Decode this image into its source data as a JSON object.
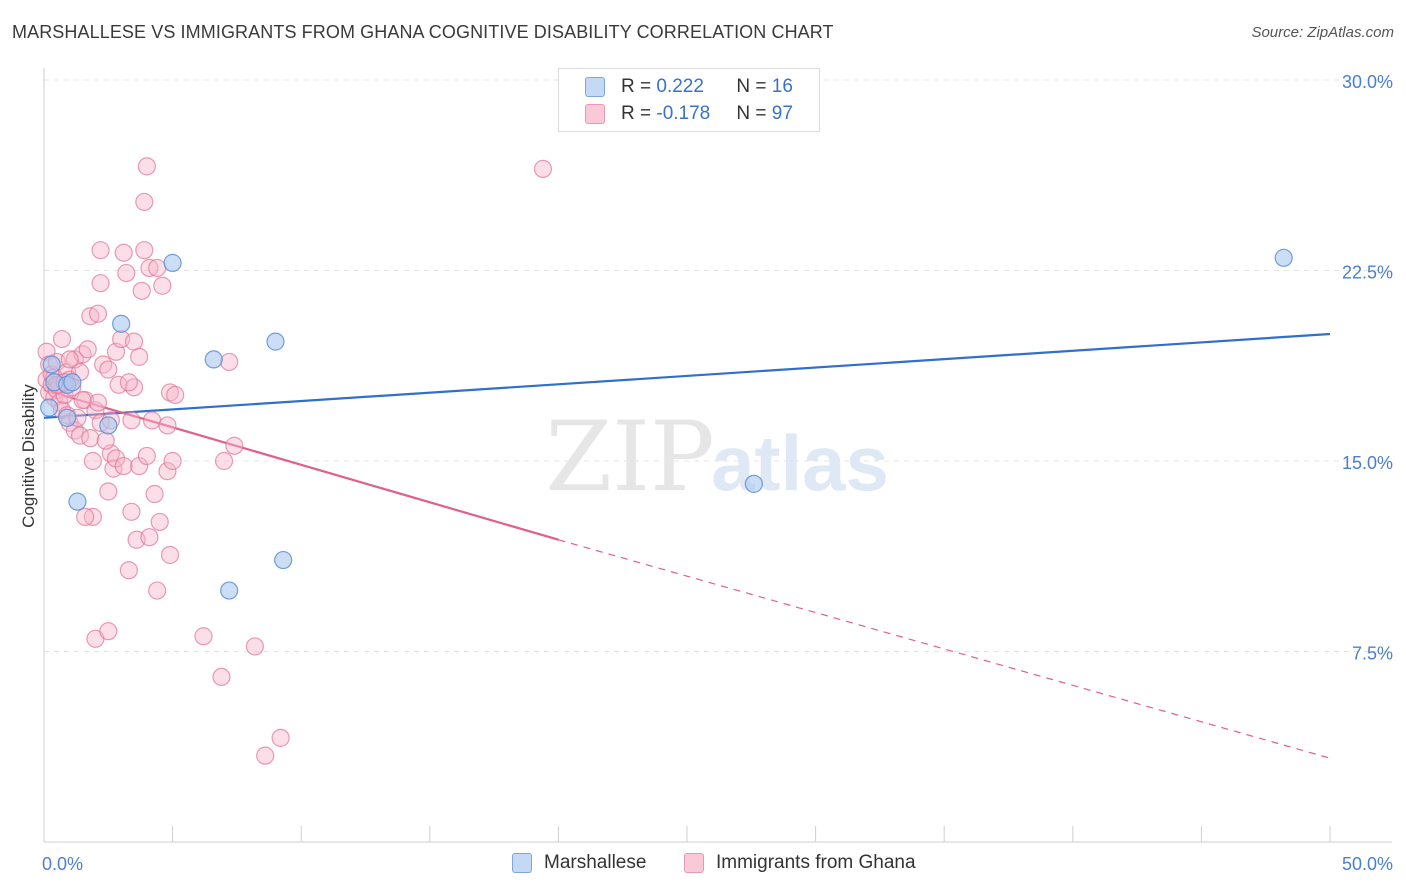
{
  "header": {
    "title": "MARSHALLESE VS IMMIGRANTS FROM GHANA COGNITIVE DISABILITY CORRELATION CHART",
    "source": "Source: ZipAtlas.com"
  },
  "legend": {
    "rows": [
      {
        "r_label": "R = ",
        "r_value": "0.222",
        "n_label": "N = ",
        "n_value": "16"
      },
      {
        "r_label": "R = ",
        "r_value": "-0.178",
        "n_label": "N = ",
        "n_value": "97"
      }
    ]
  },
  "bottom_legend": {
    "items": [
      "Marshallese",
      "Immigrants from Ghana"
    ]
  },
  "colors": {
    "blue_fill": "#aac8f0",
    "blue_stroke": "#5b8fd6",
    "blue_line": "#2f6fce",
    "pink_fill": "#f6b6c9",
    "pink_stroke": "#e07396",
    "pink_line": "#e05f8e",
    "grid": "#e4e4e4",
    "tick_text": "#4a7fd0"
  },
  "chart_data": {
    "type": "scatter",
    "title": "MARSHALLESE VS IMMIGRANTS FROM GHANA COGNITIVE DISABILITY CORRELATION CHART",
    "xlabel": "",
    "ylabel": "Cognitive Disability",
    "xlim": [
      0,
      50
    ],
    "ylim": [
      0,
      30
    ],
    "x_tick_labels": [
      "0.0%",
      "50.0%"
    ],
    "y_ticks": [
      7.5,
      15.0,
      22.5,
      30.0
    ],
    "y_tick_labels": [
      "7.5%",
      "15.0%",
      "22.5%",
      "30.0%"
    ],
    "grid": "horizontal dashed",
    "watermark": "ZIPatlas",
    "series": [
      {
        "name": "Marshallese",
        "color": "#aac8f0",
        "points": [
          [
            0.2,
            17.1
          ],
          [
            0.4,
            18.1
          ],
          [
            0.9,
            16.7
          ],
          [
            0.9,
            18.0
          ],
          [
            1.3,
            13.4
          ],
          [
            2.5,
            16.4
          ],
          [
            3.0,
            20.4
          ],
          [
            5.0,
            22.8
          ],
          [
            6.6,
            19.0
          ],
          [
            7.2,
            9.9
          ],
          [
            9.0,
            19.7
          ],
          [
            9.3,
            11.1
          ],
          [
            27.6,
            14.1
          ],
          [
            48.2,
            23.0
          ],
          [
            0.3,
            18.8
          ],
          [
            1.1,
            18.1
          ]
        ],
        "trend": {
          "x0": 0,
          "y0": 16.7,
          "x1": 50,
          "y1": 20.0,
          "style": "solid"
        }
      },
      {
        "name": "Immigrants from Ghana",
        "color": "#f6b6c9",
        "points": [
          [
            0.1,
            19.3
          ],
          [
            0.1,
            18.2
          ],
          [
            0.2,
            17.7
          ],
          [
            0.2,
            18.8
          ],
          [
            0.3,
            18.4
          ],
          [
            0.3,
            18.0
          ],
          [
            0.4,
            17.5
          ],
          [
            0.4,
            18.3
          ],
          [
            0.5,
            17.8
          ],
          [
            0.5,
            18.9
          ],
          [
            0.6,
            17.3
          ],
          [
            0.6,
            18.0
          ],
          [
            0.7,
            19.8
          ],
          [
            0.7,
            17.0
          ],
          [
            0.8,
            18.1
          ],
          [
            0.8,
            17.6
          ],
          [
            0.9,
            16.8
          ],
          [
            0.9,
            18.5
          ],
          [
            1.0,
            16.5
          ],
          [
            1.0,
            18.2
          ],
          [
            1.1,
            17.9
          ],
          [
            1.2,
            16.2
          ],
          [
            1.2,
            19.0
          ],
          [
            1.3,
            16.7
          ],
          [
            1.4,
            16.0
          ],
          [
            1.4,
            18.5
          ],
          [
            1.5,
            19.2
          ],
          [
            1.6,
            17.4
          ],
          [
            1.7,
            19.4
          ],
          [
            1.8,
            15.9
          ],
          [
            1.8,
            20.7
          ],
          [
            1.9,
            15.0
          ],
          [
            1.9,
            12.8
          ],
          [
            2.0,
            17.0
          ],
          [
            2.0,
            8.0
          ],
          [
            2.1,
            17.3
          ],
          [
            2.1,
            20.8
          ],
          [
            2.2,
            16.5
          ],
          [
            2.2,
            22.0
          ],
          [
            2.2,
            23.3
          ],
          [
            2.3,
            18.8
          ],
          [
            2.5,
            18.6
          ],
          [
            2.5,
            13.8
          ],
          [
            2.5,
            8.3
          ],
          [
            2.6,
            15.3
          ],
          [
            2.7,
            14.7
          ],
          [
            2.8,
            15.1
          ],
          [
            2.8,
            19.3
          ],
          [
            2.9,
            18.0
          ],
          [
            3.0,
            19.8
          ],
          [
            3.1,
            14.8
          ],
          [
            3.1,
            23.2
          ],
          [
            3.2,
            22.4
          ],
          [
            3.3,
            10.7
          ],
          [
            3.4,
            16.6
          ],
          [
            3.4,
            13.0
          ],
          [
            3.5,
            17.9
          ],
          [
            3.5,
            19.7
          ],
          [
            3.6,
            11.9
          ],
          [
            3.7,
            19.1
          ],
          [
            3.7,
            14.8
          ],
          [
            3.8,
            21.7
          ],
          [
            3.9,
            23.3
          ],
          [
            3.9,
            25.2
          ],
          [
            4.0,
            26.6
          ],
          [
            4.0,
            15.2
          ],
          [
            4.1,
            22.6
          ],
          [
            4.1,
            12.0
          ],
          [
            4.2,
            16.6
          ],
          [
            4.3,
            13.7
          ],
          [
            4.4,
            22.6
          ],
          [
            4.4,
            9.9
          ],
          [
            4.5,
            12.6
          ],
          [
            4.6,
            21.9
          ],
          [
            4.8,
            14.6
          ],
          [
            4.8,
            16.4
          ],
          [
            4.9,
            17.7
          ],
          [
            4.9,
            11.3
          ],
          [
            5.0,
            15.0
          ],
          [
            5.1,
            17.6
          ],
          [
            6.2,
            8.1
          ],
          [
            6.9,
            6.5
          ],
          [
            7.0,
            15.0
          ],
          [
            7.2,
            18.9
          ],
          [
            7.4,
            15.6
          ],
          [
            8.2,
            7.7
          ],
          [
            8.6,
            3.4
          ],
          [
            9.2,
            4.1
          ],
          [
            19.4,
            26.5
          ],
          [
            1.0,
            19.0
          ],
          [
            1.5,
            17.4
          ],
          [
            2.6,
            16.6
          ],
          [
            0.5,
            18.0
          ],
          [
            0.8,
            18.1
          ],
          [
            3.3,
            18.1
          ],
          [
            1.6,
            12.8
          ],
          [
            2.4,
            15.8
          ]
        ],
        "trend": {
          "x0": 0,
          "y0": 17.8,
          "x1": 20,
          "y1": 11.9,
          "style": "solid",
          "extension": {
            "x1": 50,
            "y1": 3.3,
            "style": "dashed"
          }
        }
      }
    ]
  }
}
